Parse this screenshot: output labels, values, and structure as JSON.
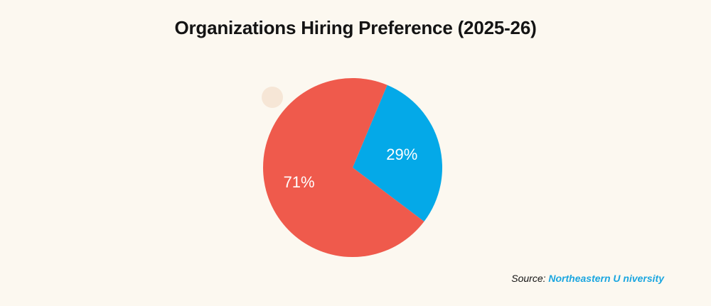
{
  "chart_data": {
    "type": "pie",
    "title": "Organizations Hiring Preference (2025-26)",
    "categories": [
      "",
      ""
    ],
    "values": [
      71,
      29
    ],
    "labels": [
      "71%",
      "29%"
    ],
    "colors": [
      "#ef5a4c",
      "#04a9e8"
    ],
    "legend": "none"
  },
  "source": {
    "prefix": "Source:",
    "name": "Northeastern U niversity"
  }
}
